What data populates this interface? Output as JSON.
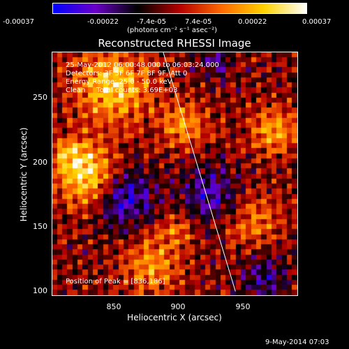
{
  "colorbar": {
    "ticks": [
      "-0.00037",
      "-0.00022",
      "-7.4e-05",
      "7.4e-05",
      "0.00022",
      "0.00037"
    ],
    "unit": "(photons cm⁻² s⁻¹ asec⁻²)"
  },
  "title": "Reconstructed RHESSI Image",
  "info": {
    "time": "25-May-2012 06:00:48.000 to 06:03:24.000",
    "detectors": "Detectors: 3F 5F 6F 7F 8F 9F, Att 0",
    "energy": "Energy Range: 25.0 - 50.0 keV",
    "clean": "Clean     Total counts: 3.69E+03",
    "peak": "Position of Peak = [836,186]"
  },
  "footer": "9-May-2014 07:03",
  "chart_data": {
    "type": "heatmap",
    "title": "Reconstructed RHESSI Image",
    "xlabel": "Heliocentric X (arcsec)",
    "ylabel": "Heliocentric Y (arcsec)",
    "xlim": [
      803,
      993
    ],
    "ylim": [
      97,
      287
    ],
    "xticks": [
      850,
      900,
      950
    ],
    "yticks": [
      100,
      150,
      200,
      250
    ],
    "color_range": [
      -0.00037,
      0.00037
    ],
    "colormap": [
      "#0000ff",
      "#6a00c8",
      "#000000",
      "#b40000",
      "#ff6a00",
      "#ffd200",
      "#ffffff"
    ],
    "peak_position": [
      836,
      186
    ],
    "limb_line": {
      "x": [
        889,
        945
      ],
      "y": [
        287,
        100
      ]
    }
  }
}
